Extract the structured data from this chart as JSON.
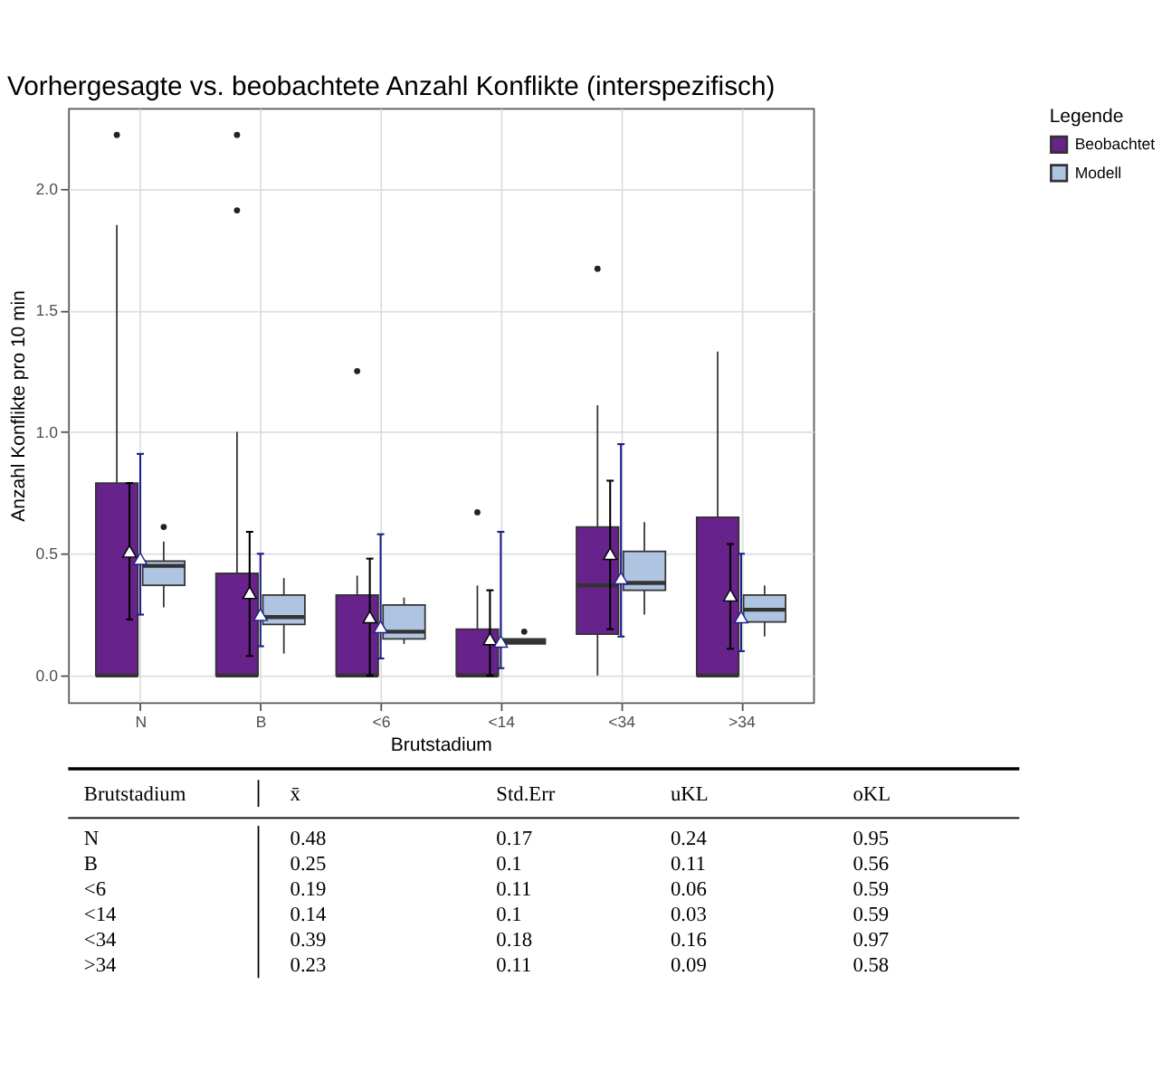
{
  "chart_data": {
    "type": "box",
    "title": "Vorhergesagte vs. beobachtete Anzahl Konflikte (interspezifisch)",
    "xlabel": "Brutstadium",
    "ylabel": "Anzahl Konflikte pro 10 min",
    "legend_title": "Legende",
    "legend": "right",
    "grid": true,
    "marker": "triangle",
    "categories": [
      "N",
      "B",
      "<6",
      "<14",
      "<34",
      ">34"
    ],
    "ylim": [
      -0.11,
      2.33
    ],
    "yticks": [
      {
        "value": 0,
        "label": "0.0"
      },
      {
        "value": 0.5,
        "label": "0.5"
      },
      {
        "value": 1,
        "label": "1.0"
      },
      {
        "value": 1.5,
        "label": "1.5"
      },
      {
        "value": 2,
        "label": "2.0"
      }
    ],
    "series": [
      {
        "name": "Beobachtet",
        "color": "#68228b",
        "boxes": [
          {
            "low": 0,
            "q1": 0,
            "median": 0,
            "q3": 0.79,
            "high": 1.85,
            "outliers": [
              2.22
            ]
          },
          {
            "low": 0,
            "q1": 0,
            "median": 0,
            "q3": 0.42,
            "high": 1.0,
            "outliers": [
              2.22,
              1.91
            ]
          },
          {
            "low": 0,
            "q1": 0,
            "median": 0,
            "q3": 0.33,
            "high": 0.41,
            "outliers": [
              1.25
            ]
          },
          {
            "low": 0,
            "q1": 0,
            "median": 0,
            "q3": 0.19,
            "high": 0.37,
            "outliers": [
              0.67
            ]
          },
          {
            "low": 0,
            "q1": 0.17,
            "median": 0.37,
            "q3": 0.61,
            "high": 1.11,
            "outliers": [
              1.67
            ]
          },
          {
            "low": 0,
            "q1": 0,
            "median": 0,
            "q3": 0.65,
            "high": 1.33
          }
        ]
      },
      {
        "name": "Modell",
        "color": "#aec4e0",
        "boxes": [
          {
            "low": 0.28,
            "q1": 0.37,
            "median": 0.45,
            "q3": 0.47,
            "high": 0.55,
            "outliers": [
              0.61
            ]
          },
          {
            "low": 0.09,
            "q1": 0.21,
            "median": 0.24,
            "q3": 0.33,
            "high": 0.4
          },
          {
            "low": 0.13,
            "q1": 0.15,
            "median": 0.18,
            "q3": 0.29,
            "high": 0.32
          },
          {
            "low": 0.13,
            "q1": 0.13,
            "median": 0.14,
            "q3": 0.15,
            "high": 0.15,
            "outliers": [
              0.18
            ]
          },
          {
            "low": 0.25,
            "q1": 0.35,
            "median": 0.38,
            "q3": 0.51,
            "high": 0.63
          },
          {
            "low": 0.16,
            "q1": 0.22,
            "median": 0.27,
            "q3": 0.33,
            "high": 0.37
          }
        ]
      },
      {
        "type": "scatter",
        "color": "#000000",
        "x": [
          "N",
          "B",
          "<6",
          "<14",
          "<34",
          ">34"
        ],
        "values": [
          0.51,
          0.34,
          0.24,
          0.15,
          0.5,
          0.33
        ],
        "errors": [
          [
            0.23,
            0.79
          ],
          [
            0.08,
            0.59
          ],
          [
            0,
            0.48
          ],
          [
            0,
            0.35
          ],
          [
            0.19,
            0.8
          ],
          [
            0.11,
            0.54
          ]
        ]
      },
      {
        "type": "scatter",
        "color": "#1f1f8f",
        "x": [
          "N",
          "B",
          "<6",
          "<14",
          "<34",
          ">34"
        ],
        "values": [
          0.48,
          0.25,
          0.2,
          0.14,
          0.4,
          0.24
        ],
        "errors": [
          [
            0.25,
            0.91
          ],
          [
            0.12,
            0.5
          ],
          [
            0.07,
            0.58
          ],
          [
            0.03,
            0.59
          ],
          [
            0.16,
            0.95
          ],
          [
            0.1,
            0.5
          ]
        ]
      }
    ],
    "annotations": [
      "Brutstadium",
      "x̄",
      "Std.Err",
      "uKL",
      "oKL",
      "N",
      "0.48",
      "0.17",
      "0.24",
      "0.95",
      "B",
      "0.25",
      "0.1",
      "0.11",
      "0.56",
      "<6",
      "0.19",
      "0.11",
      "0.06",
      "0.59",
      "<14",
      "0.14",
      "0.1",
      "0.03",
      "0.59",
      "<34",
      "0.39",
      "0.18",
      "0.16",
      "0.97",
      ">34",
      "0.23",
      "0.11",
      "0.09",
      "0.58"
    ]
  }
}
